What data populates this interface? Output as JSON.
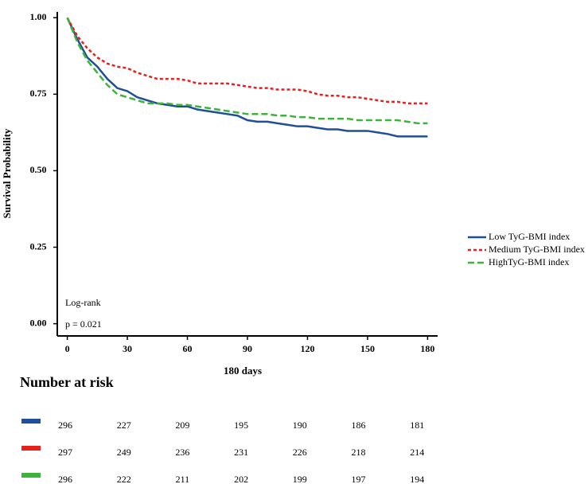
{
  "chart_data": {
    "type": "line",
    "x_label": "180 days",
    "y_label": "Survival Probability",
    "annotations": [
      "Log-rank",
      "p = 0.021"
    ],
    "xlim": [
      -5,
      185
    ],
    "ylim": [
      -0.04,
      1.05
    ],
    "xticks": [
      0,
      30,
      60,
      90,
      120,
      150,
      180
    ],
    "yticks": [
      {
        "value": 0,
        "label": "0.00"
      },
      {
        "value": 0.25,
        "label": "0.25"
      },
      {
        "value": 0.5,
        "label": "0.50"
      },
      {
        "value": 0.75,
        "label": "0.75"
      },
      {
        "value": 1,
        "label": "1.00"
      }
    ],
    "legend": "right",
    "x": [
      0,
      5,
      10,
      15,
      20,
      25,
      30,
      35,
      40,
      45,
      50,
      55,
      60,
      65,
      70,
      75,
      80,
      85,
      90,
      95,
      100,
      105,
      110,
      115,
      120,
      125,
      130,
      135,
      140,
      145,
      150,
      155,
      160,
      165,
      170,
      175,
      180
    ],
    "series": [
      {
        "name": "Low TyG-BMI index",
        "color": "#1f4e9a",
        "dash": "solid",
        "values": [
          1,
          0.93,
          0.87,
          0.84,
          0.8,
          0.77,
          0.76,
          0.74,
          0.73,
          0.72,
          0.715,
          0.71,
          0.71,
          0.7,
          0.695,
          0.69,
          0.685,
          0.68,
          0.665,
          0.66,
          0.66,
          0.655,
          0.65,
          0.645,
          0.645,
          0.64,
          0.635,
          0.635,
          0.63,
          0.63,
          0.63,
          0.625,
          0.62,
          0.612,
          0.612,
          0.612,
          0.612
        ]
      },
      {
        "name": "Medium TyG-BMI index",
        "color": "#e8201e",
        "dash": "dotted",
        "values": [
          1,
          0.94,
          0.9,
          0.87,
          0.85,
          0.84,
          0.835,
          0.82,
          0.81,
          0.8,
          0.8,
          0.8,
          0.795,
          0.785,
          0.785,
          0.785,
          0.785,
          0.78,
          0.775,
          0.77,
          0.77,
          0.765,
          0.765,
          0.765,
          0.76,
          0.75,
          0.745,
          0.745,
          0.74,
          0.74,
          0.735,
          0.73,
          0.725,
          0.725,
          0.72,
          0.72,
          0.72
        ]
      },
      {
        "name": "HighTyG-BMI index",
        "color": "#3cb43c",
        "dash": "dashed",
        "values": [
          1,
          0.92,
          0.86,
          0.82,
          0.78,
          0.75,
          0.74,
          0.73,
          0.72,
          0.72,
          0.72,
          0.715,
          0.715,
          0.71,
          0.705,
          0.7,
          0.695,
          0.69,
          0.685,
          0.685,
          0.685,
          0.68,
          0.68,
          0.675,
          0.675,
          0.67,
          0.67,
          0.67,
          0.67,
          0.665,
          0.665,
          0.665,
          0.665,
          0.665,
          0.66,
          0.655,
          0.655
        ]
      }
    ]
  },
  "risk_table": {
    "title": "Number at risk",
    "rows": [
      {
        "color": "#1f4e9a",
        "values": [
          296,
          227,
          209,
          195,
          190,
          186,
          181
        ]
      },
      {
        "color": "#e8201e",
        "values": [
          297,
          249,
          236,
          231,
          226,
          218,
          214
        ]
      },
      {
        "color": "#3cb43c",
        "values": [
          296,
          222,
          211,
          202,
          199,
          197,
          194
        ]
      }
    ]
  }
}
